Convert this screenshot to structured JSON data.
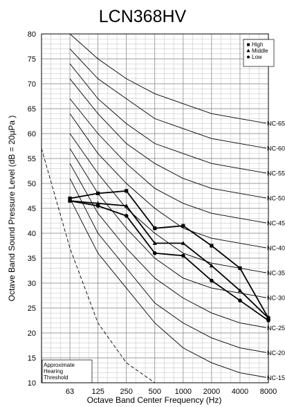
{
  "chart_data": {
    "type": "line",
    "title": "LCN368HV",
    "xlabel": "Octave Band Center Frequency (Hz)",
    "ylabel": "Octave Band Sound Pressure Level (dB = 20µPa )",
    "ylim": [
      10,
      80
    ],
    "yticks": [
      10,
      15,
      20,
      25,
      30,
      35,
      40,
      45,
      50,
      55,
      60,
      65,
      70,
      75,
      80
    ],
    "x_scale": "log",
    "x": [
      63,
      125,
      250,
      500,
      1000,
      2000,
      4000,
      8000
    ],
    "x_tick_labels": [
      "63",
      "125",
      "250",
      "500",
      "1000",
      "2000",
      "4000",
      "8000"
    ],
    "grid": true,
    "legend_position": "top-right",
    "series": [
      {
        "name": "High",
        "marker": "square",
        "values": [
          47.0,
          48.0,
          48.5,
          41.0,
          41.5,
          37.5,
          33.0,
          23.0
        ]
      },
      {
        "name": "Middle",
        "marker": "triangle",
        "values": [
          46.5,
          46.0,
          45.5,
          38.0,
          38.0,
          33.5,
          28.5,
          23.0
        ]
      },
      {
        "name": "Low",
        "marker": "circle",
        "values": [
          46.5,
          45.5,
          43.5,
          36.0,
          35.5,
          30.5,
          26.5,
          22.5
        ]
      }
    ],
    "nc_curves": [
      {
        "label": "NC-15",
        "values": [
          47,
          36,
          29,
          22,
          17,
          14,
          12,
          11
        ]
      },
      {
        "label": "NC-20",
        "values": [
          51,
          40,
          33,
          26,
          22,
          19,
          17,
          16
        ]
      },
      {
        "label": "NC-25",
        "values": [
          54,
          44,
          37,
          31,
          27,
          24,
          22,
          21
        ]
      },
      {
        "label": "NC-30",
        "values": [
          57,
          48,
          41,
          35,
          31,
          29,
          28,
          27
        ]
      },
      {
        "label": "NC-35",
        "values": [
          60,
          52,
          45,
          40,
          36,
          34,
          33,
          32
        ]
      },
      {
        "label": "NC-40",
        "values": [
          64,
          56,
          50,
          45,
          41,
          39,
          38,
          37
        ]
      },
      {
        "label": "NC-45",
        "values": [
          67,
          60,
          54,
          49,
          46,
          44,
          43,
          42
        ]
      },
      {
        "label": "NC-50",
        "values": [
          71,
          64,
          58,
          54,
          51,
          49,
          48,
          47
        ]
      },
      {
        "label": "NC-55",
        "values": [
          74,
          67,
          62,
          58,
          56,
          54,
          53,
          52
        ]
      },
      {
        "label": "NC-60",
        "values": [
          77,
          71,
          67,
          63,
          61,
          59,
          58,
          57
        ]
      },
      {
        "label": "NC-65",
        "values": [
          80,
          75,
          71,
          68,
          66,
          64,
          63,
          62
        ]
      }
    ],
    "hearing_threshold": {
      "label": "Approximate Hearing Threshold",
      "points": [
        [
          31.5,
          57
        ],
        [
          63,
          37
        ],
        [
          125,
          22
        ],
        [
          250,
          14
        ],
        [
          500,
          10
        ]
      ]
    }
  }
}
